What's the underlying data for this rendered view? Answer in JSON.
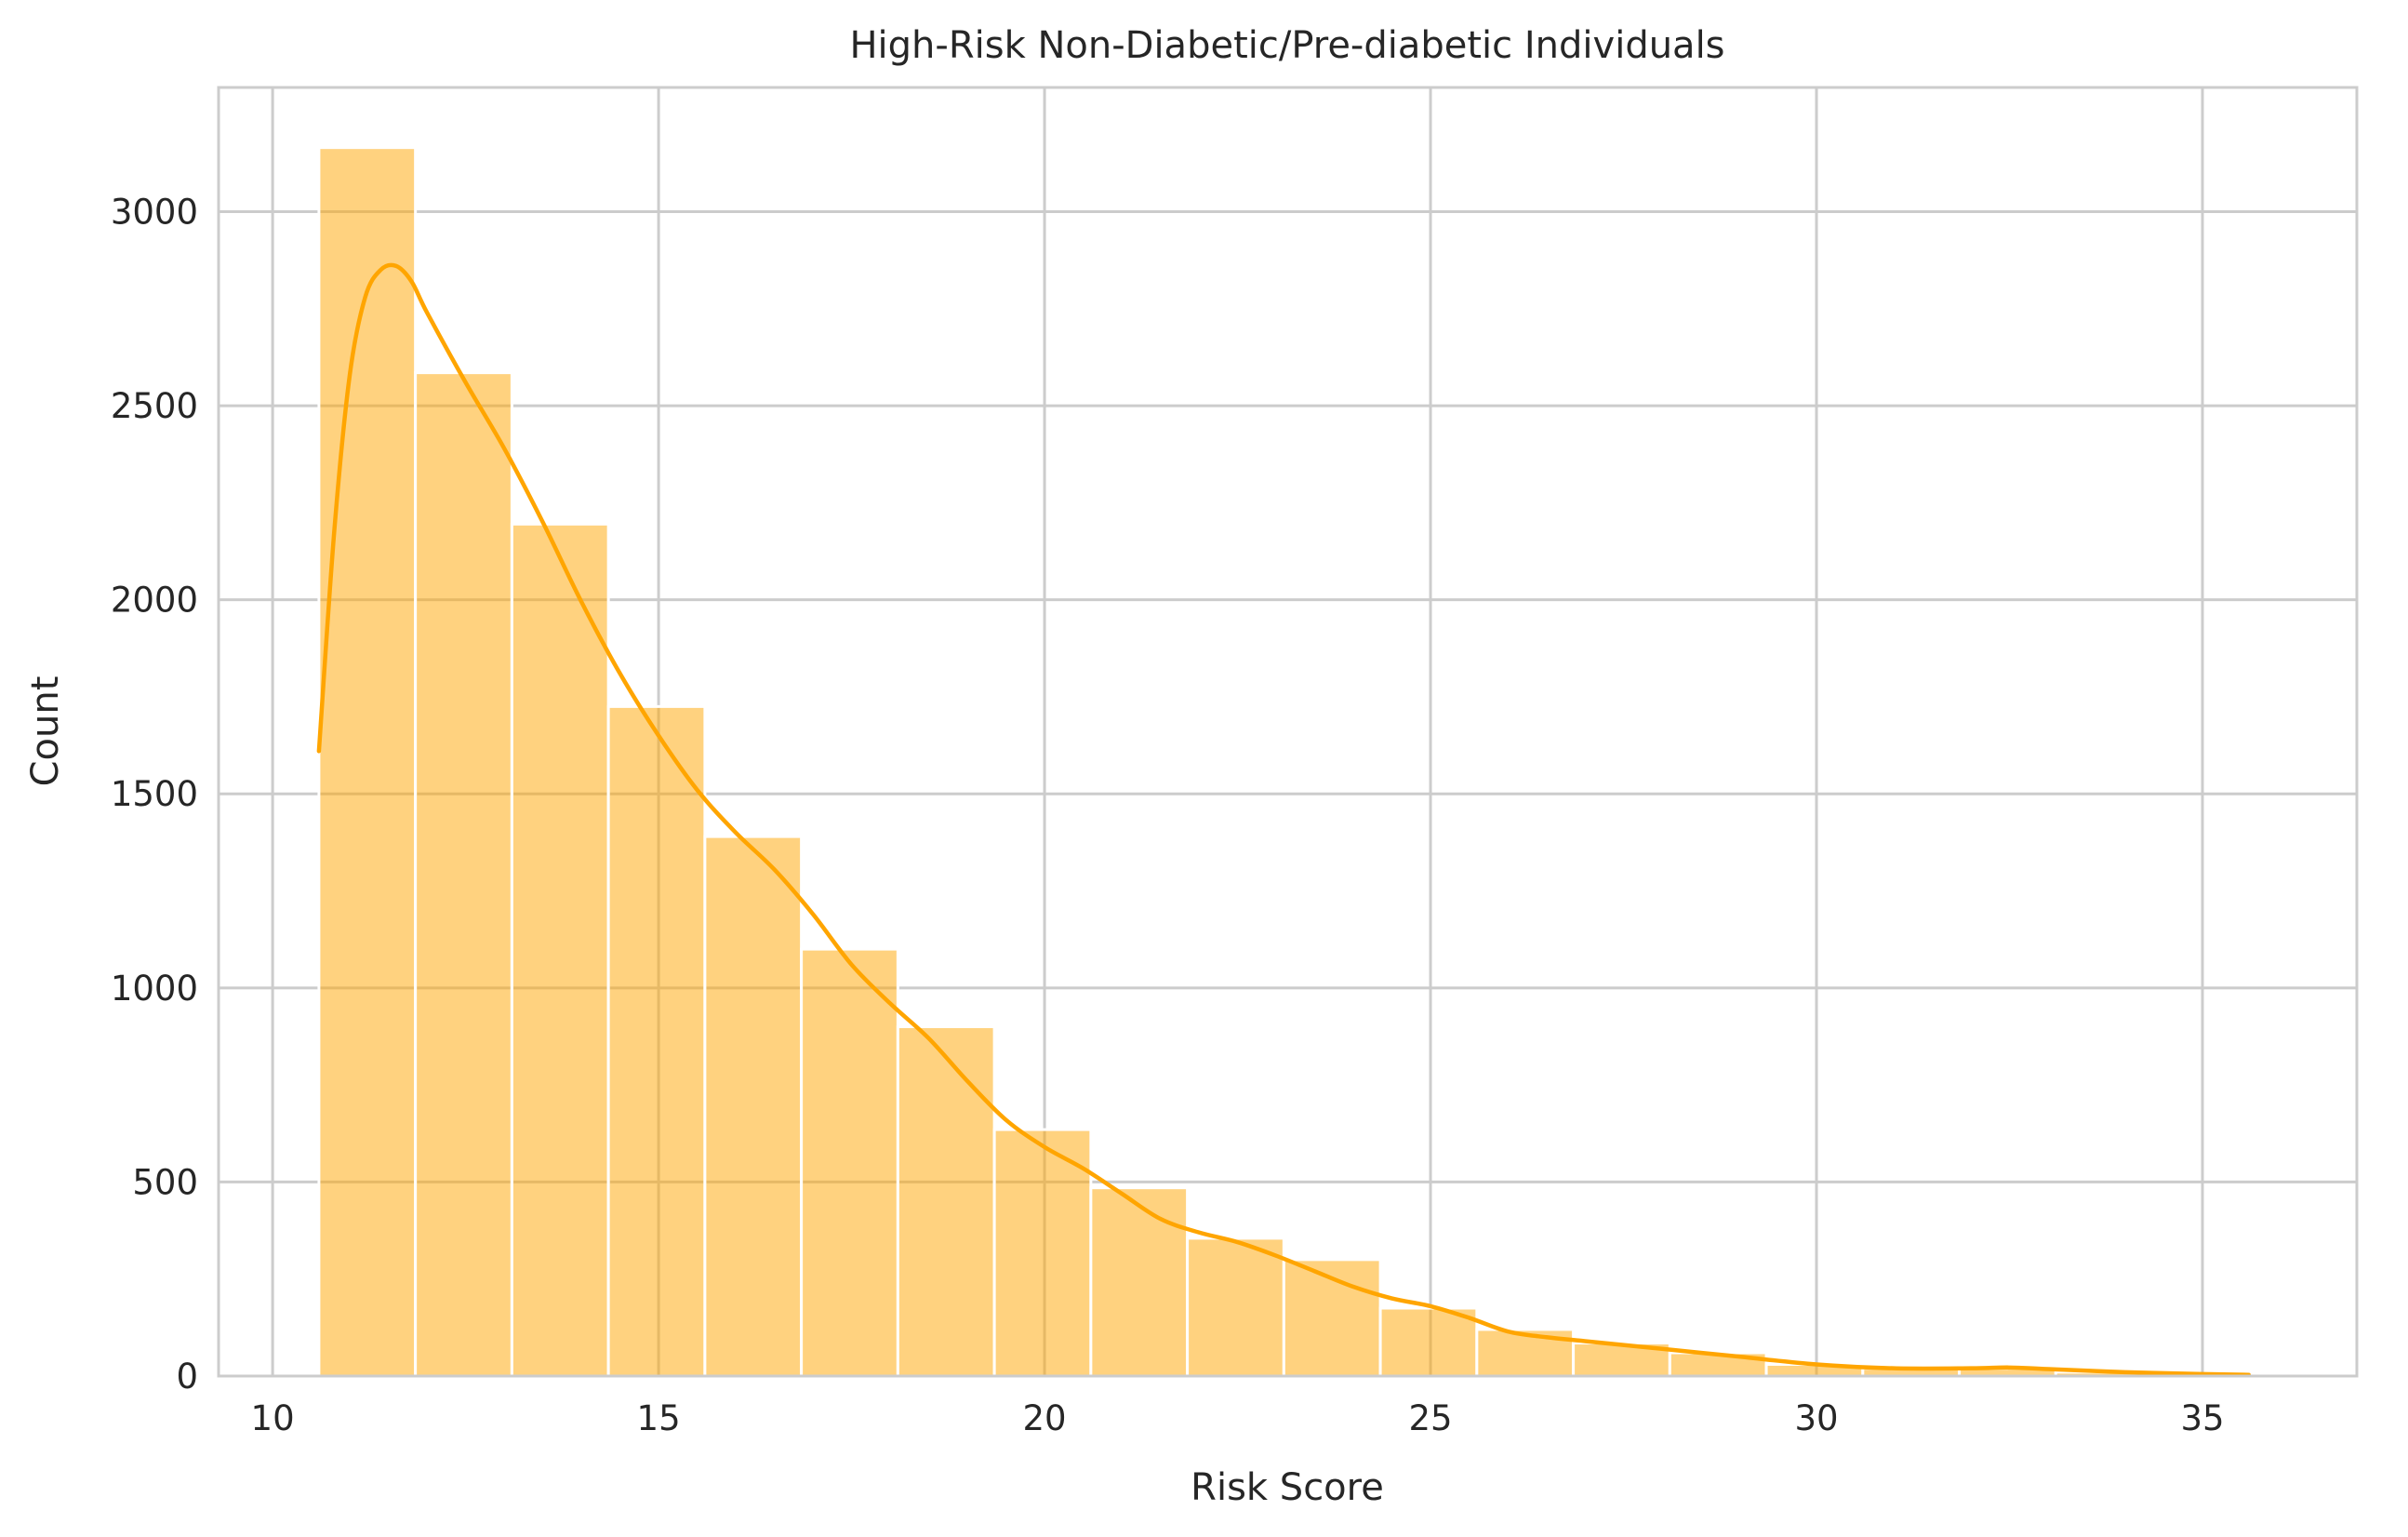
{
  "chart_data": {
    "type": "bar",
    "title": "High-Risk Non-Diabetic/Pre-diabetic Individuals",
    "xlabel": "Risk Score",
    "ylabel": "Count",
    "xlim": [
      9.3,
      37.0
    ],
    "ylim": [
      0,
      3320
    ],
    "xticks": [
      10,
      15,
      20,
      25,
      30,
      35
    ],
    "yticks": [
      0,
      500,
      1000,
      1500,
      2000,
      2500,
      3000
    ],
    "grid": true,
    "bar_color": "#FFA500",
    "bar_opacity": 0.5,
    "bins": [
      {
        "x0": 10.6,
        "x1": 11.85,
        "count": 3165
      },
      {
        "x0": 11.85,
        "x1": 13.1,
        "count": 2585
      },
      {
        "x0": 13.1,
        "x1": 14.35,
        "count": 2195
      },
      {
        "x0": 14.35,
        "x1": 15.6,
        "count": 1725
      },
      {
        "x0": 15.6,
        "x1": 16.85,
        "count": 1390
      },
      {
        "x0": 16.85,
        "x1": 18.1,
        "count": 1100
      },
      {
        "x0": 18.1,
        "x1": 19.35,
        "count": 900
      },
      {
        "x0": 19.35,
        "x1": 20.6,
        "count": 635
      },
      {
        "x0": 20.6,
        "x1": 21.85,
        "count": 485
      },
      {
        "x0": 21.85,
        "x1": 23.1,
        "count": 355
      },
      {
        "x0": 23.1,
        "x1": 24.35,
        "count": 300
      },
      {
        "x0": 24.35,
        "x1": 25.6,
        "count": 175
      },
      {
        "x0": 25.6,
        "x1": 26.85,
        "count": 120
      },
      {
        "x0": 26.85,
        "x1": 28.1,
        "count": 85
      },
      {
        "x0": 28.1,
        "x1": 29.35,
        "count": 60
      },
      {
        "x0": 29.35,
        "x1": 30.6,
        "count": 30
      },
      {
        "x0": 30.6,
        "x1": 31.85,
        "count": 20
      },
      {
        "x0": 31.85,
        "x1": 33.1,
        "count": 20
      },
      {
        "x0": 33.1,
        "x1": 34.35,
        "count": 10
      },
      {
        "x0": 34.35,
        "x1": 35.6,
        "count": 5
      }
    ],
    "kde": {
      "name": "KDE",
      "color": "#FFA500",
      "x": [
        10.6,
        10.8,
        11.0,
        11.2,
        11.4,
        11.6,
        11.8,
        12.0,
        12.5,
        13.0,
        13.5,
        14.0,
        14.5,
        15.0,
        15.5,
        16.0,
        16.5,
        17.0,
        17.5,
        18.0,
        18.5,
        19.0,
        19.5,
        20.0,
        20.5,
        21.0,
        21.5,
        22.0,
        22.5,
        23.0,
        23.5,
        24.0,
        24.5,
        25.0,
        25.5,
        26.0,
        26.5,
        27.0,
        28.0,
        29.0,
        30.0,
        31.0,
        32.0,
        32.5,
        33.0,
        34.0,
        35.0,
        35.6
      ],
      "y": [
        1610,
        2180,
        2580,
        2780,
        2850,
        2860,
        2820,
        2740,
        2560,
        2390,
        2200,
        1995,
        1810,
        1650,
        1510,
        1400,
        1305,
        1190,
        1060,
        960,
        870,
        760,
        660,
        590,
        535,
        470,
        405,
        370,
        345,
        310,
        270,
        230,
        200,
        180,
        150,
        115,
        100,
        90,
        70,
        50,
        30,
        20,
        20,
        22,
        18,
        10,
        5,
        3
      ]
    }
  }
}
